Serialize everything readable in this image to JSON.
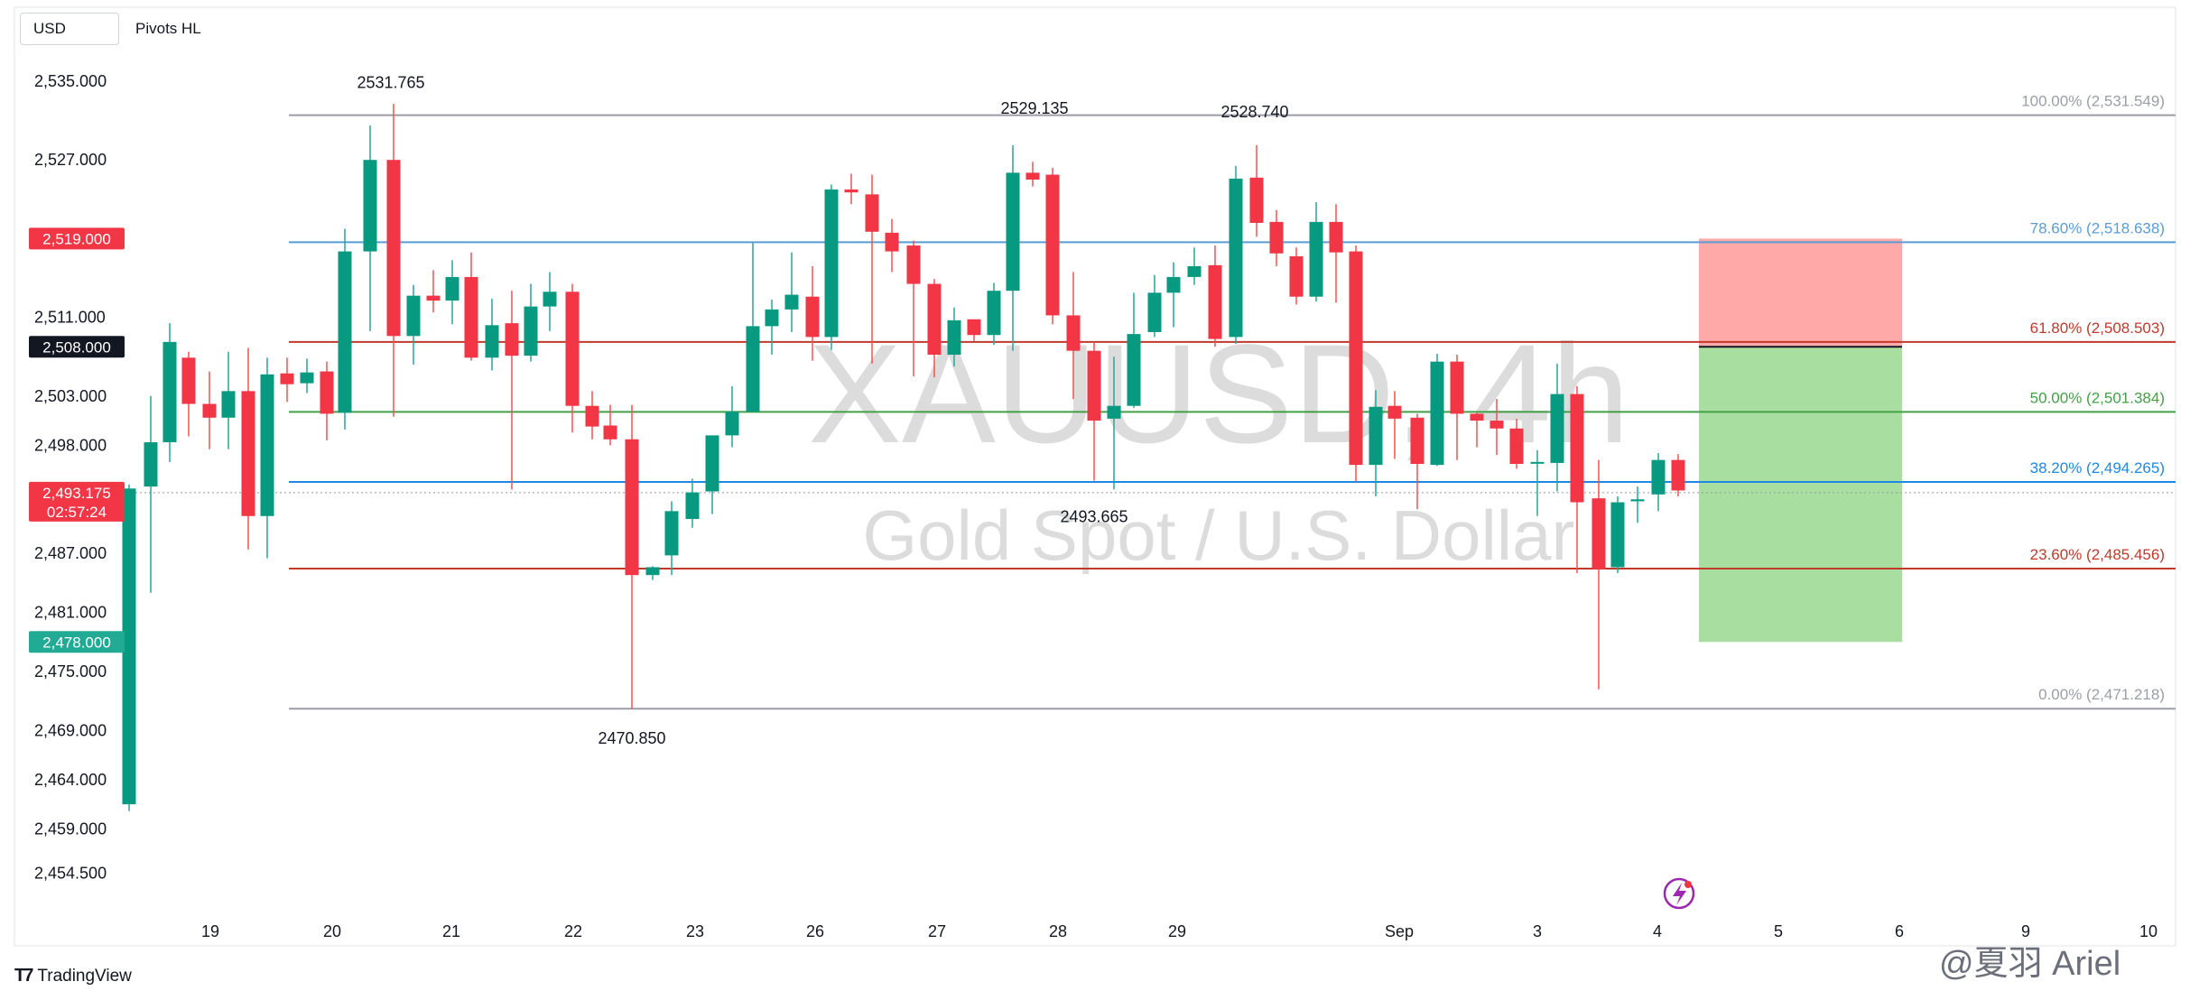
{
  "header": {
    "symbol_currency": "USD",
    "indicator": "Pivots HL"
  },
  "watermark": {
    "line1": "XAUUSD, 4h",
    "line2": "Gold Spot / U.S. Dollar"
  },
  "footer": {
    "brand": "TradingView",
    "author": "@夏羽 Ariel"
  },
  "colors": {
    "up": "#26a69a",
    "down": "#ef5350",
    "up_body": "#089981",
    "down_body": "#f23645"
  },
  "chart_data": {
    "type": "candlestick",
    "timeframe": "4h",
    "y_ticks": [
      "2,535.000",
      "2,527.000",
      "2,511.000",
      "2,503.000",
      "2,498.000",
      "2,487.000",
      "2,481.000",
      "2,475.000",
      "2,469.000",
      "2,464.000",
      "2,459.000",
      "2,454.500"
    ],
    "x_ticks": [
      "19",
      "20",
      "21",
      "22",
      "23",
      "26",
      "27",
      "28",
      "29",
      "Sep",
      "3",
      "4",
      "5",
      "6",
      "9",
      "10"
    ],
    "price_badges": [
      {
        "label": "2,519.000",
        "value": 2519,
        "color": "#f23645"
      },
      {
        "label": "2,508.000",
        "value": 2508,
        "color": "#131722"
      },
      {
        "label": "2,493.175",
        "sublabel": "02:57:24",
        "value": 2493.175,
        "color": "#f23645"
      },
      {
        "label": "2,478.000",
        "value": 2478,
        "color": "#22ab94"
      }
    ],
    "pivots": [
      {
        "label": "2531.765",
        "value": 2531.765
      },
      {
        "label": "2529.135",
        "value": 2529.135
      },
      {
        "label": "2528.740",
        "value": 2528.74
      },
      {
        "label": "2470.850",
        "value": 2470.85
      },
      {
        "label": "2493.665",
        "value": 2493.665
      }
    ],
    "fib_levels": [
      {
        "label": "100.00% (2,531.549)",
        "value": 2531.549,
        "color": "#9b9ea7"
      },
      {
        "label": "78.60% (2,518.638)",
        "value": 2518.638,
        "color": "#5b9cd6"
      },
      {
        "label": "61.80% (2,508.503)",
        "value": 2508.503,
        "color": "#c0392b"
      },
      {
        "label": "50.00% (2,501.384)",
        "value": 2501.384,
        "color": "#43a047"
      },
      {
        "label": "38.20% (2,494.265)",
        "value": 2494.265,
        "color": "#1e88e5"
      },
      {
        "label": "23.60% (2,485.456)",
        "value": 2485.456,
        "color": "#c0392b"
      },
      {
        "label": "0.00% (2,471.218)",
        "value": 2471.218,
        "color": "#9b9ea7"
      }
    ],
    "position": {
      "entry": 2508.0,
      "stop": 2519.0,
      "target": 2478.0
    },
    "candles": [
      {
        "x": 143,
        "o": 2461.5,
        "c": 2493.6,
        "h": 2494,
        "l": 2460.8
      },
      {
        "x": 167,
        "o": 2493.8,
        "c": 2498.3,
        "h": 2503,
        "l": 2483
      },
      {
        "x": 188,
        "o": 2498.3,
        "c": 2508.5,
        "h": 2510.4,
        "l": 2496.3
      },
      {
        "x": 209,
        "o": 2506.9,
        "c": 2502.2,
        "h": 2507.5,
        "l": 2498.9
      },
      {
        "x": 232,
        "o": 2502.2,
        "c": 2500.8,
        "h": 2505.5,
        "l": 2497.6
      },
      {
        "x": 253,
        "o": 2500.8,
        "c": 2503.5,
        "h": 2507.5,
        "l": 2497.6
      },
      {
        "x": 275,
        "o": 2503.5,
        "c": 2490.8,
        "h": 2507.9,
        "l": 2487.4
      },
      {
        "x": 296,
        "o": 2490.8,
        "c": 2505.2,
        "h": 2506.9,
        "l": 2486.5
      },
      {
        "x": 318,
        "o": 2505.3,
        "c": 2504.2,
        "h": 2506.9,
        "l": 2502.4
      },
      {
        "x": 340,
        "o": 2504.3,
        "c": 2505.4,
        "h": 2506.8,
        "l": 2503.3
      },
      {
        "x": 362,
        "o": 2505.5,
        "c": 2501.2,
        "h": 2506.5,
        "l": 2498.5
      },
      {
        "x": 382,
        "o": 2501.3,
        "c": 2517.7,
        "h": 2520.0,
        "l": 2499.6
      },
      {
        "x": 410,
        "o": 2517.7,
        "c": 2527.0,
        "h": 2530.5,
        "l": 2509.6
      },
      {
        "x": 436,
        "o": 2527.0,
        "c": 2509.1,
        "h": 2532.7,
        "l": 2500.9
      },
      {
        "x": 458,
        "o": 2509.1,
        "c": 2513.2,
        "h": 2514.3,
        "l": 2506.2
      },
      {
        "x": 480,
        "o": 2513.2,
        "c": 2512.7,
        "h": 2515.8,
        "l": 2511.5
      },
      {
        "x": 501,
        "o": 2512.7,
        "c": 2515.1,
        "h": 2516.8,
        "l": 2510.3
      },
      {
        "x": 522,
        "o": 2515.1,
        "c": 2506.9,
        "h": 2517.6,
        "l": 2506.6
      },
      {
        "x": 545,
        "o": 2506.9,
        "c": 2510.2,
        "h": 2512.9,
        "l": 2505.6
      },
      {
        "x": 567,
        "o": 2510.4,
        "c": 2507.1,
        "h": 2513.7,
        "l": 2493.5
      },
      {
        "x": 588,
        "o": 2507.1,
        "c": 2512.1,
        "h": 2514.4,
        "l": 2506.5
      },
      {
        "x": 609,
        "o": 2512.1,
        "c": 2513.6,
        "h": 2515.6,
        "l": 2509.6
      },
      {
        "x": 634,
        "o": 2513.6,
        "c": 2502.0,
        "h": 2514.4,
        "l": 2499.3
      },
      {
        "x": 656,
        "o": 2502.0,
        "c": 2499.9,
        "h": 2503.5,
        "l": 2498.6
      },
      {
        "x": 676,
        "o": 2500.0,
        "c": 2498.6,
        "h": 2502.1,
        "l": 2498.0
      },
      {
        "x": 700,
        "o": 2498.6,
        "c": 2484.8,
        "h": 2502.1,
        "l": 2471.2
      },
      {
        "x": 723,
        "o": 2484.8,
        "c": 2485.6,
        "h": 2485.7,
        "l": 2484.3
      },
      {
        "x": 744,
        "o": 2486.8,
        "c": 2491.3,
        "h": 2492.3,
        "l": 2484.8
      },
      {
        "x": 767,
        "o": 2490.5,
        "c": 2493.2,
        "h": 2494.6,
        "l": 2489.6
      },
      {
        "x": 789,
        "o": 2493.3,
        "c": 2499.0,
        "h": 2499.0,
        "l": 2491.0
      },
      {
        "x": 811,
        "o": 2499.0,
        "c": 2501.4,
        "h": 2504.0,
        "l": 2497.8
      },
      {
        "x": 834,
        "o": 2501.4,
        "c": 2510.1,
        "h": 2518.6,
        "l": 2501.7
      },
      {
        "x": 855,
        "o": 2510.1,
        "c": 2511.8,
        "h": 2512.8,
        "l": 2507.2
      },
      {
        "x": 877,
        "o": 2511.8,
        "c": 2513.3,
        "h": 2517.6,
        "l": 2509.5
      },
      {
        "x": 900,
        "o": 2513.1,
        "c": 2509.0,
        "h": 2516.2,
        "l": 2506.6
      },
      {
        "x": 921,
        "o": 2509.0,
        "c": 2524.0,
        "h": 2524.5,
        "l": 2507.7
      },
      {
        "x": 943,
        "o": 2524.0,
        "c": 2523.7,
        "h": 2525.6,
        "l": 2522.5
      },
      {
        "x": 966,
        "o": 2523.5,
        "c": 2519.7,
        "h": 2525.5,
        "l": 2506.3
      },
      {
        "x": 988,
        "o": 2519.6,
        "c": 2517.7,
        "h": 2521.0,
        "l": 2515.6
      },
      {
        "x": 1012,
        "o": 2518.3,
        "c": 2514.4,
        "h": 2518.8,
        "l": 2505.0
      },
      {
        "x": 1035,
        "o": 2514.4,
        "c": 2507.2,
        "h": 2514.9,
        "l": 2504.9
      },
      {
        "x": 1057,
        "o": 2507.2,
        "c": 2510.7,
        "h": 2512.0,
        "l": 2506.0
      },
      {
        "x": 1079,
        "o": 2510.8,
        "c": 2509.2,
        "h": 2510.8,
        "l": 2508.6
      },
      {
        "x": 1101,
        "o": 2509.2,
        "c": 2513.7,
        "h": 2514.5,
        "l": 2508.2
      },
      {
        "x": 1122,
        "o": 2513.7,
        "c": 2525.7,
        "h": 2528.5,
        "l": 2507.6
      },
      {
        "x": 1144,
        "o": 2525.7,
        "c": 2525.0,
        "h": 2526.8,
        "l": 2524.3
      },
      {
        "x": 1166,
        "o": 2525.5,
        "c": 2511.2,
        "h": 2526.2,
        "l": 2510.3
      },
      {
        "x": 1189,
        "o": 2511.2,
        "c": 2507.6,
        "h": 2515.6,
        "l": 2502.7
      },
      {
        "x": 1212,
        "o": 2507.6,
        "c": 2500.5,
        "h": 2508.5,
        "l": 2494.4
      },
      {
        "x": 1234,
        "o": 2500.7,
        "c": 2502.0,
        "h": 2507.0,
        "l": 2493.5
      },
      {
        "x": 1256,
        "o": 2502.0,
        "c": 2509.3,
        "h": 2513.5,
        "l": 2501.8
      },
      {
        "x": 1279,
        "o": 2509.5,
        "c": 2513.5,
        "h": 2515.3,
        "l": 2509.0
      },
      {
        "x": 1300,
        "o": 2513.5,
        "c": 2515.1,
        "h": 2516.6,
        "l": 2510.0
      },
      {
        "x": 1323,
        "o": 2515.1,
        "c": 2516.2,
        "h": 2518.1,
        "l": 2514.3
      },
      {
        "x": 1346,
        "o": 2516.3,
        "c": 2508.8,
        "h": 2518.3,
        "l": 2508.0
      },
      {
        "x": 1369,
        "o": 2509.0,
        "c": 2525.1,
        "h": 2526.4,
        "l": 2508.3
      },
      {
        "x": 1392,
        "o": 2525.2,
        "c": 2520.6,
        "h": 2528.5,
        "l": 2519.2
      },
      {
        "x": 1414,
        "o": 2520.7,
        "c": 2517.5,
        "h": 2521.9,
        "l": 2516.2
      },
      {
        "x": 1436,
        "o": 2517.2,
        "c": 2513.1,
        "h": 2518.1,
        "l": 2512.3
      },
      {
        "x": 1458,
        "o": 2513.1,
        "c": 2520.7,
        "h": 2522.7,
        "l": 2512.6
      },
      {
        "x": 1480,
        "o": 2520.7,
        "c": 2517.6,
        "h": 2522.5,
        "l": 2512.5
      },
      {
        "x": 1502,
        "o": 2517.7,
        "c": 2496.0,
        "h": 2518.3,
        "l": 2494.3
      },
      {
        "x": 1524,
        "o": 2496.0,
        "c": 2501.9,
        "h": 2503.6,
        "l": 2492.8
      },
      {
        "x": 1545,
        "o": 2502.0,
        "c": 2500.7,
        "h": 2503.5,
        "l": 2496.6
      },
      {
        "x": 1570,
        "o": 2500.8,
        "c": 2496.1,
        "h": 2501.2,
        "l": 2491.5
      },
      {
        "x": 1592,
        "o": 2496.0,
        "c": 2506.5,
        "h": 2507.3,
        "l": 2495.9
      },
      {
        "x": 1614,
        "o": 2506.5,
        "c": 2501.2,
        "h": 2507.2,
        "l": 2496.5
      },
      {
        "x": 1636,
        "o": 2501.2,
        "c": 2500.5,
        "h": 2501.3,
        "l": 2497.8
      },
      {
        "x": 1658,
        "o": 2500.5,
        "c": 2499.7,
        "h": 2502.7,
        "l": 2497.0
      },
      {
        "x": 1680,
        "o": 2499.7,
        "c": 2496.1,
        "h": 2500.7,
        "l": 2495.6
      },
      {
        "x": 1703,
        "o": 2496.2,
        "c": 2496.3,
        "h": 2497.5,
        "l": 2490.8
      },
      {
        "x": 1725,
        "o": 2496.2,
        "c": 2503.2,
        "h": 2506.3,
        "l": 2493.3
      },
      {
        "x": 1747,
        "o": 2503.2,
        "c": 2492.2,
        "h": 2504.0,
        "l": 2485.0
      },
      {
        "x": 1771,
        "o": 2492.6,
        "c": 2485.4,
        "h": 2496.5,
        "l": 2473.2
      },
      {
        "x": 1792,
        "o": 2485.6,
        "c": 2492.2,
        "h": 2492.8,
        "l": 2485.0
      },
      {
        "x": 1814,
        "o": 2492.3,
        "c": 2492.5,
        "h": 2493.8,
        "l": 2490.1
      },
      {
        "x": 1837,
        "o": 2493.0,
        "c": 2496.5,
        "h": 2497.2,
        "l": 2491.3
      },
      {
        "x": 1859,
        "o": 2496.5,
        "c": 2493.4,
        "h": 2497.1,
        "l": 2492.8
      }
    ]
  }
}
